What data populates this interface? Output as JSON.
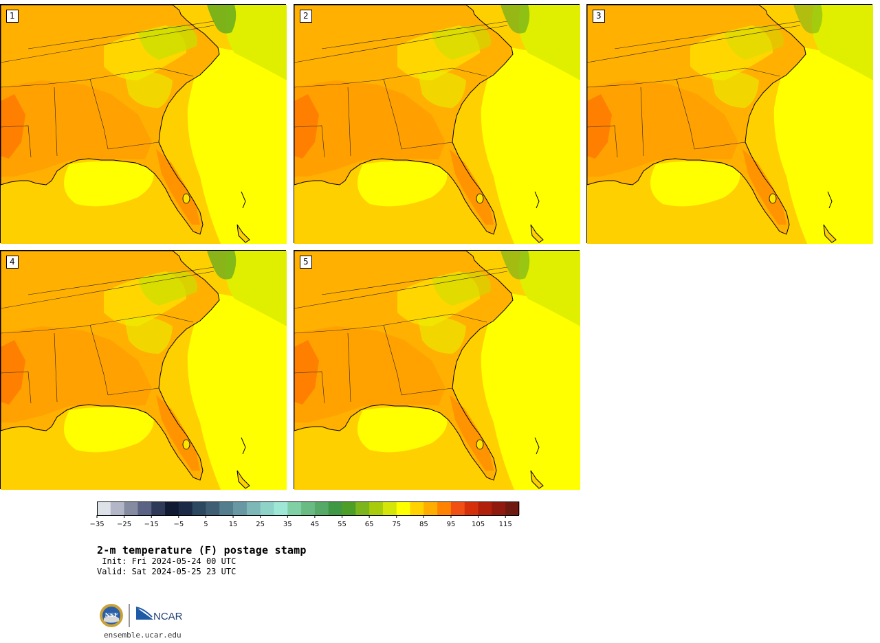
{
  "panels": [
    {
      "label": "1"
    },
    {
      "label": "2"
    },
    {
      "label": "3"
    },
    {
      "label": "4"
    },
    {
      "label": "5"
    }
  ],
  "colorbar": {
    "colors": [
      "#dde1e8",
      "#b2b6c7",
      "#858ba0",
      "#5a6383",
      "#2f3a58",
      "#111a33",
      "#1b2a46",
      "#2c4860",
      "#3f5e74",
      "#547e8d",
      "#6798a4",
      "#7db7b8",
      "#8fd3c8",
      "#9ee7d7",
      "#7fd1a5",
      "#69bb83",
      "#56aa67",
      "#3e9844",
      "#4d9e27",
      "#7cb61c",
      "#a8cc0b",
      "#d4e50a",
      "#ffff00",
      "#ffd200",
      "#ffad00",
      "#ff8200",
      "#f05014",
      "#d5300a",
      "#b0200a",
      "#8f1a0d",
      "#6e1a10"
    ],
    "tick_labels": [
      "−35",
      "−25",
      "−15",
      "−5",
      "5",
      "15",
      "25",
      "35",
      "45",
      "55",
      "65",
      "75",
      "85",
      "95",
      "105",
      "115"
    ]
  },
  "title": "2-m temperature (F) postage stamp",
  "init": " Init: Fri 2024-05-24 00 UTC",
  "valid": "Valid: Sat 2024-05-25 23 UTC",
  "logo_nsf": "NSF",
  "logo_ncar": "NCAR",
  "website": "ensemble.ucar.edu"
}
